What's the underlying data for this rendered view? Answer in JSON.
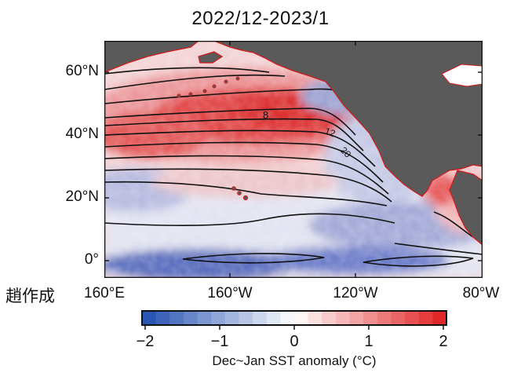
{
  "title": "2022/12-2023/1",
  "map": {
    "lat_labels": [
      "60°N",
      "40°N",
      "20°N",
      "0°"
    ],
    "lon_labels": [
      "160°E",
      "160°W",
      "120°W",
      "80°W"
    ],
    "contour_labels": [
      "8",
      "12",
      "20"
    ],
    "land_color": "#5a5a5a",
    "coast_color": "#d21a1a",
    "contour_color": "#111111"
  },
  "credit": "趙作成",
  "colorbar": {
    "ticks": [
      "−2",
      "−1",
      "0",
      "1",
      "2"
    ],
    "label": "Dec~Jan SST anomaly (°C)",
    "range": [
      -2.2,
      2.2
    ],
    "low_color": "#1f4db0",
    "mid_color": "#ffffff",
    "high_color": "#e01e1e"
  }
}
